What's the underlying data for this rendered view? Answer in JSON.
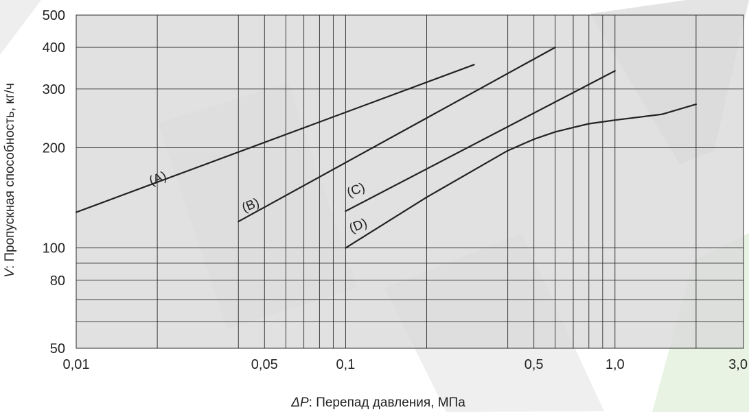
{
  "chart_data": {
    "type": "line",
    "xlabel_symbol": "ΔP",
    "xlabel_rest": ": Перепад давления, МПа",
    "ylabel_symbol": "V",
    "ylabel_rest": ": Пропускная способность, кг/ч",
    "x_scale": "log",
    "y_scale": "log",
    "xlim": [
      0.01,
      3.0
    ],
    "ylim": [
      50,
      500
    ],
    "grid": true,
    "x_ticks": [
      {
        "value": 0.01,
        "label": "0,01"
      },
      {
        "value": 0.05,
        "label": "0,05"
      },
      {
        "value": 0.1,
        "label": "0,1"
      },
      {
        "value": 0.5,
        "label": "0,5"
      },
      {
        "value": 1.0,
        "label": "1,0"
      },
      {
        "value": 3.0,
        "label": "3,0"
      }
    ],
    "y_ticks": [
      {
        "value": 50,
        "label": "50"
      },
      {
        "value": 80,
        "label": "80"
      },
      {
        "value": 100,
        "label": "100"
      },
      {
        "value": 200,
        "label": "200"
      },
      {
        "value": 300,
        "label": "300"
      },
      {
        "value": 400,
        "label": "400"
      },
      {
        "value": 500,
        "label": "500"
      }
    ],
    "x_grid": [
      0.02,
      0.04,
      0.05,
      0.06,
      0.07,
      0.08,
      0.09,
      0.1,
      0.2,
      0.4,
      0.5,
      0.6,
      0.7,
      0.8,
      0.9,
      1.0,
      2.0
    ],
    "y_grid": [
      60,
      70,
      80,
      90,
      100,
      200,
      300,
      400
    ],
    "series": [
      {
        "name": "(A)",
        "x": [
          0.01,
          0.3
        ],
        "y": [
          128,
          355
        ]
      },
      {
        "name": "(B)",
        "x": [
          0.04,
          0.6
        ],
        "y": [
          120,
          400
        ]
      },
      {
        "name": "(C)",
        "x": [
          0.1,
          1.0
        ],
        "y": [
          129,
          340
        ]
      },
      {
        "name": "(D)",
        "x": [
          0.1,
          0.2,
          0.4,
          0.5,
          0.6,
          0.7,
          0.8,
          1.0,
          1.5,
          2.0
        ],
        "y": [
          100,
          142,
          196,
          212,
          223,
          230,
          236,
          242,
          252,
          270
        ]
      }
    ],
    "curve_labels": [
      {
        "series": "(A)",
        "x": 0.019,
        "y": 154
      },
      {
        "series": "(B)",
        "x": 0.042,
        "y": 128
      },
      {
        "series": "(C)",
        "x": 0.103,
        "y": 142
      },
      {
        "series": "(D)",
        "x": 0.105,
        "y": 111
      }
    ]
  },
  "colors": {
    "plot_background": "#dbdbdb",
    "grid": "#2b2b2b",
    "series": "#222222",
    "watermark_gray": "#c8c8c8",
    "watermark_green": "#e8f3e3"
  }
}
